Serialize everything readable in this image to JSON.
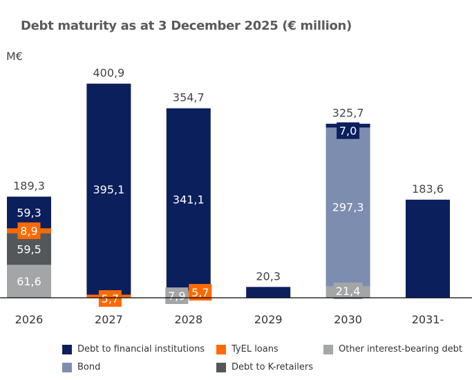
{
  "chart_data": {
    "type": "bar",
    "stacked": true,
    "title": "Debt maturity as at 3 December 2025 (€ million)",
    "ylabel": "M€",
    "xlabel": "",
    "categories": [
      "2026",
      "2027",
      "2028",
      "2029",
      "2030",
      "2031-"
    ],
    "totals": [
      "189,3",
      "400,9",
      "354,7",
      "20,3",
      "325,7",
      "183,6"
    ],
    "series": [
      {
        "name": "Other interest-bearing debt",
        "color": "#a3a5a7",
        "values": [
          61.6,
          0,
          7.9,
          0,
          21.4,
          0
        ],
        "labels": [
          "61,6",
          "",
          "7,9",
          "",
          "21,4",
          ""
        ]
      },
      {
        "name": "Debt to K-retailers",
        "color": "#54575a",
        "values": [
          59.5,
          0,
          0,
          0,
          0,
          0
        ],
        "labels": [
          "59,5",
          "",
          "",
          "",
          "",
          ""
        ]
      },
      {
        "name": "Bond",
        "color": "#7d8db0",
        "values": [
          0,
          0,
          0,
          0,
          297.3,
          0
        ],
        "labels": [
          "",
          "",
          "",
          "",
          "297,3",
          ""
        ]
      },
      {
        "name": "TyEL loans",
        "color": "#ff6a00",
        "values": [
          8.9,
          5.7,
          5.7,
          0,
          0,
          0
        ],
        "labels": [
          "8,9",
          "5,7",
          "5,7",
          "",
          "",
          ""
        ]
      },
      {
        "name": "Debt to financial institutions",
        "color": "#0b1f5c",
        "values": [
          59.3,
          395.1,
          341.1,
          20.3,
          7.0,
          183.6
        ],
        "labels": [
          "59,3",
          "395,1",
          "341,1",
          "",
          "7,0",
          ""
        ]
      }
    ],
    "ylim": [
      0,
      400.9
    ],
    "grid": false,
    "legend_position": "bottom"
  },
  "legend": [
    {
      "name": "Debt to financial institutions",
      "color": "#0b1f5c"
    },
    {
      "name": "TyEL loans",
      "color": "#ff6a00"
    },
    {
      "name": "Other interest-bearing debt",
      "color": "#a3a5a7"
    },
    {
      "name": "Bond",
      "color": "#7d8db0"
    },
    {
      "name": "Debt to K-retailers",
      "color": "#54575a"
    }
  ]
}
